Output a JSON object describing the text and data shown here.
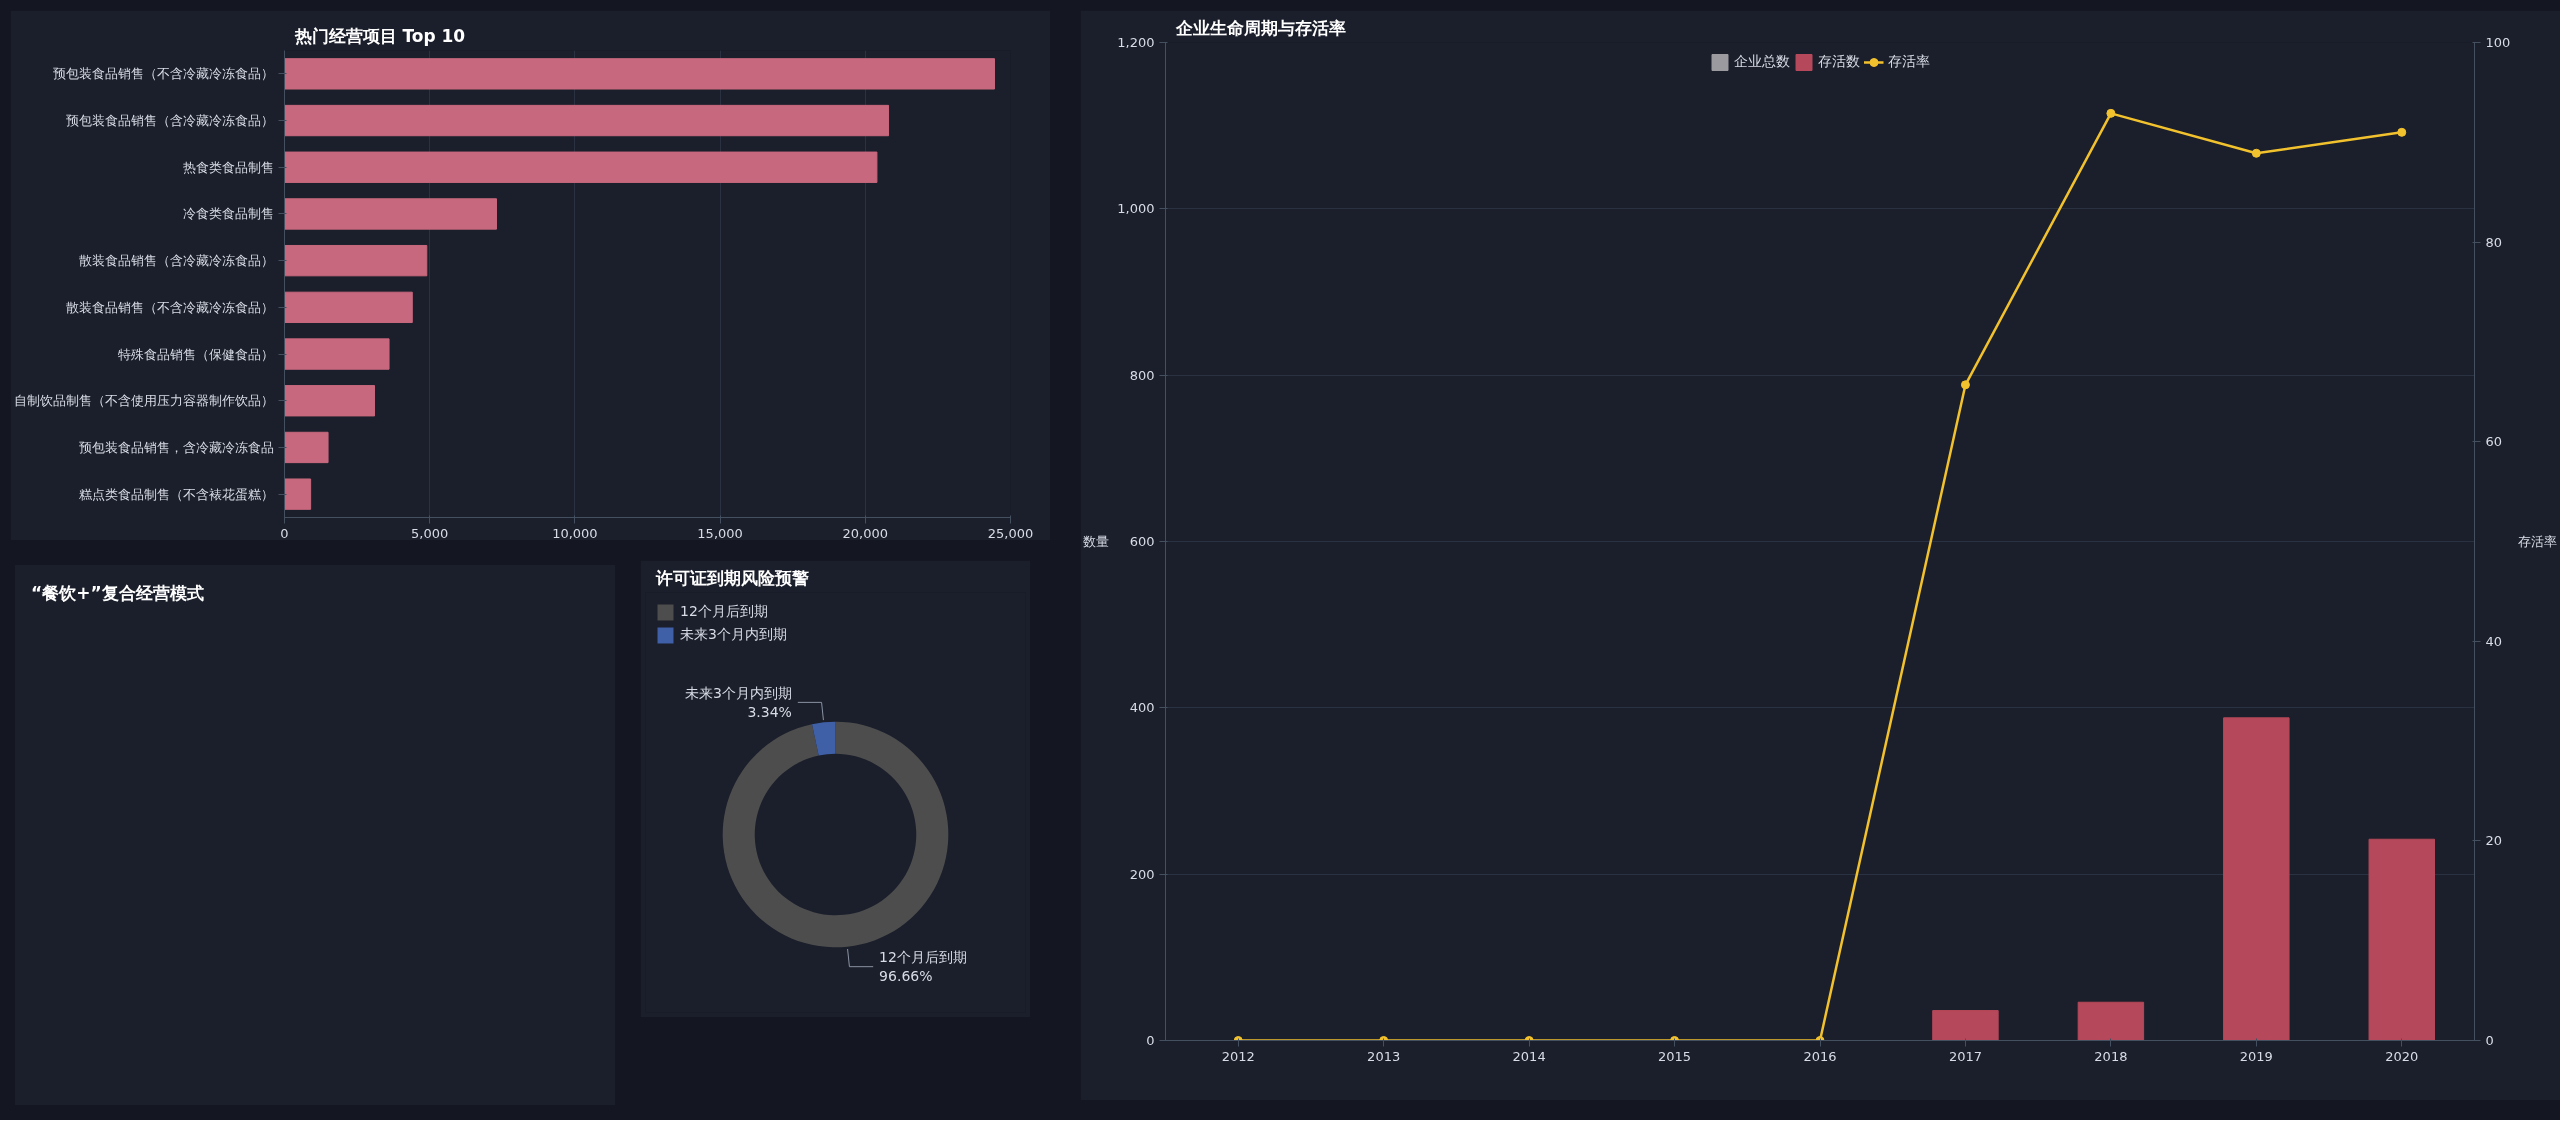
{
  "chart_data": [
    {
      "type": "bar",
      "title": "热门经营项目 Top 10",
      "orientation": "horizontal",
      "color": "#c8687e",
      "categories": [
        "预包装食品销售（不含冷藏冷冻食品）",
        "预包装食品销售（含冷藏冷冻食品）",
        "热食类食品制售",
        "冷食类食品制售",
        "散装食品销售（含冷藏冷冻食品）",
        "散装食品销售（不含冷藏冷冻食品）",
        "特殊食品销售（保健食品）",
        "自制饮品制售（不含使用压力容器制作饮品）",
        "预包装食品销售，含冷藏冷冻食品",
        "糕点类食品制售（不含裱花蛋糕）"
      ],
      "values": [
        24450,
        20800,
        20400,
        7300,
        4900,
        4400,
        3600,
        3100,
        1500,
        900
      ],
      "xlim": [
        0,
        25000
      ],
      "xticks": [
        0,
        {
          "value": 5000,
          "label": "5,000"
        },
        {
          "value": 10000,
          "label": "10,000"
        },
        {
          "value": 15000,
          "label": "15,000"
        },
        {
          "value": 20000,
          "label": "20,000"
        },
        {
          "value": 25000,
          "label": "25,000"
        }
      ],
      "grid": "x"
    },
    {
      "type": "other",
      "title": "“餐饮+”复合经营模式"
    },
    {
      "type": "donut",
      "title": "许可证到期风险预警",
      "categories": [
        "12个月后到期",
        "未来3个月内到期"
      ],
      "values": [
        96.66,
        3.34
      ],
      "colors": [
        "#4d4d4d",
        "#3f5fa6"
      ],
      "value_labels": [
        "96.66%",
        "3.34%"
      ],
      "legend": "top left"
    },
    {
      "type": "bar",
      "title": "企业生命周期与存活率",
      "categories": [
        "2012",
        "2013",
        "2014",
        "2015",
        "2016",
        "2017",
        "2018",
        "2019",
        "2020"
      ],
      "series": [
        {
          "name": "企业总数",
          "color": "#9a9a9f",
          "values": [
            null,
            null,
            null,
            null,
            null,
            null,
            null,
            null,
            null
          ]
        },
        {
          "name": "存活数",
          "color": "#b5485a",
          "values": [
            0,
            0,
            0,
            0,
            0,
            36,
            46,
            388,
            242
          ]
        },
        {
          "name": "存活率",
          "type": "line",
          "axis": "y2",
          "color": "#f2c12e",
          "values": [
            0,
            0,
            0,
            0,
            0,
            65.7,
            92.9,
            88.9,
            91.0
          ]
        }
      ],
      "ylabel": "数量",
      "y2label": "存活率",
      "ylim": [
        0,
        1200
      ],
      "yticks": [
        0,
        200,
        400,
        600,
        800,
        {
          "value": 1000,
          "label": "1,000"
        },
        {
          "value": 1200,
          "label": "1,200"
        }
      ],
      "y2lim": [
        0,
        100
      ],
      "y2ticks": [
        0,
        20,
        40,
        60,
        80,
        100
      ],
      "grid": "y",
      "legend": "top",
      "marker": "circle"
    }
  ]
}
